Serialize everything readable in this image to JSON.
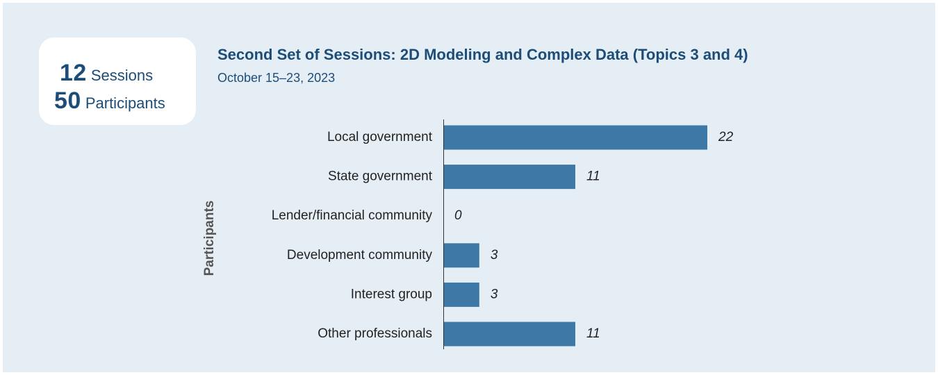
{
  "stats": {
    "sessions_value": "12",
    "sessions_label": "Sessions",
    "participants_value": "50",
    "participants_label": "Participants"
  },
  "colors": {
    "background": "#e6eef5",
    "bar": "#3d78a6",
    "heading": "#1c4d79"
  },
  "chart_data": {
    "type": "bar",
    "orientation": "horizontal",
    "title": "Second Set of Sessions: 2D Modeling and Complex Data (Topics 3 and 4)",
    "subtitle": "October 15–23, 2023",
    "ylabel": "Participants",
    "xlabel": "",
    "categories": [
      "Local government",
      "State government",
      "Lender/financial community",
      "Development community",
      "Interest group",
      "Other professionals"
    ],
    "values": [
      22,
      11,
      0,
      3,
      3,
      11
    ],
    "xlim": [
      0,
      22
    ],
    "grid": false,
    "legend": "none"
  }
}
